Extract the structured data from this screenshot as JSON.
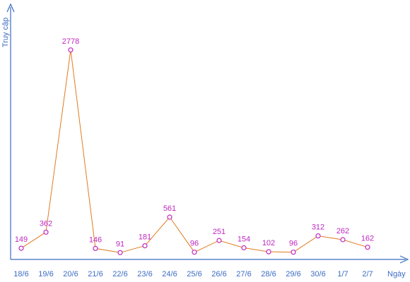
{
  "chart_data": {
    "type": "line",
    "xlabel": "Ngày",
    "ylabel": "Truy cập",
    "categories": [
      "18/6",
      "19/6",
      "20/6",
      "21/6",
      "22/6",
      "23/6",
      "24/6",
      "25/6",
      "26/6",
      "27/6",
      "28/6",
      "29/6",
      "30/6",
      "1/7",
      "2/7"
    ],
    "series": [
      {
        "values": [
          149,
          362,
          2778,
          146,
          91,
          181,
          561,
          96,
          251,
          154,
          102,
          96,
          312,
          262,
          162
        ],
        "labels": [
          "149",
          "362",
          "2778",
          "146",
          "91",
          "181",
          "561",
          "96",
          "251",
          "154",
          "102",
          "96",
          "312",
          "262",
          "162"
        ]
      }
    ],
    "ylim": [
      0,
      3080
    ],
    "grid": false,
    "legend": "none",
    "colors": {
      "axis": "#3b6cc4",
      "line": "#e07b1f",
      "marker": "#c026c0",
      "label": "#c026c0"
    }
  }
}
